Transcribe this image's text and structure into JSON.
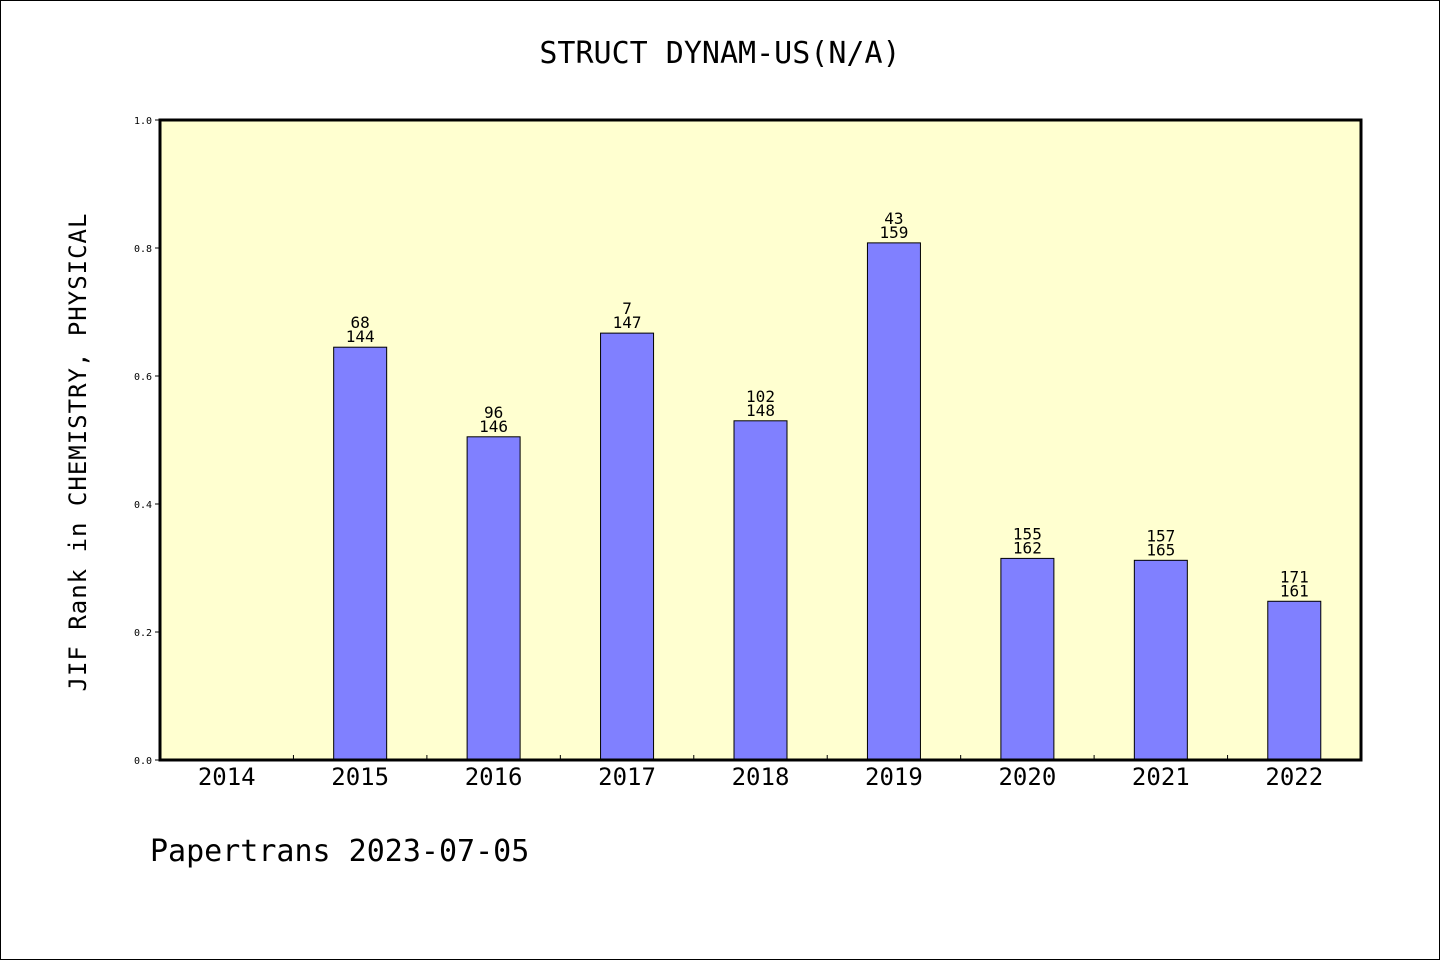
{
  "chart_data": {
    "type": "bar",
    "title": "STRUCT DYNAM-US(N/A)",
    "xlabel": "",
    "ylabel": "JIF Rank in CHEMISTRY, PHYSICAL",
    "ylim": [
      0,
      1.0
    ],
    "yticks": [
      "0.0",
      "0.2",
      "0.4",
      "0.6",
      "0.8",
      "1.0"
    ],
    "categories": [
      "2014",
      "2015",
      "2016",
      "2017",
      "2018",
      "2019",
      "2020",
      "2021",
      "2022"
    ],
    "values": [
      null,
      0.645,
      0.505,
      0.667,
      0.53,
      0.808,
      0.315,
      0.312,
      0.248
    ],
    "rank_labels": [
      "",
      "68",
      "96",
      "7",
      "102",
      "43",
      "155",
      "157",
      "171"
    ],
    "total_labels": [
      "",
      "144",
      "146",
      "147",
      "148",
      "159",
      "162",
      "165",
      "161"
    ],
    "grid": false,
    "colors": {
      "plot_background": "#ffffd0",
      "bar": "#8080ff"
    }
  },
  "footer": "Papertrans 2023-07-05"
}
